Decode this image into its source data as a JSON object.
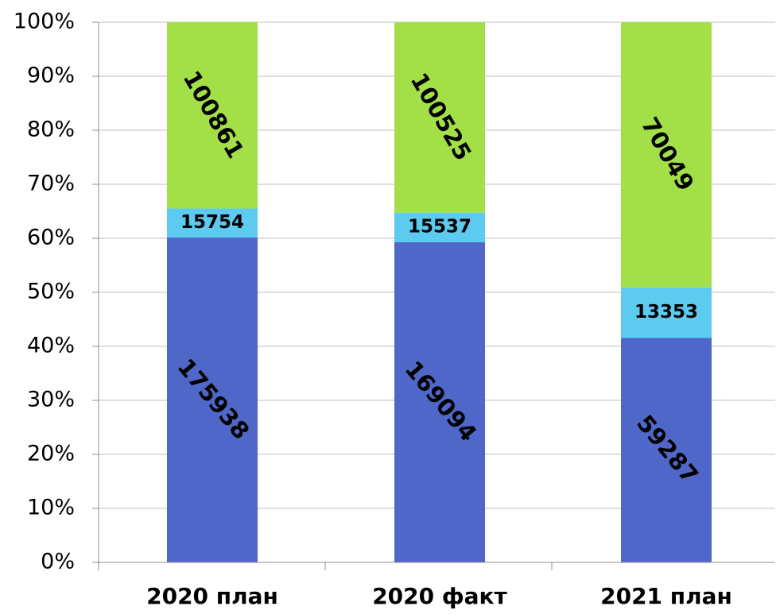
{
  "chart_data": {
    "type": "bar",
    "stacked": true,
    "normalized": true,
    "categories": [
      "2020 план",
      "2020 факт",
      "2021 план"
    ],
    "series": [
      {
        "values": [
          175938,
          169094,
          59287
        ],
        "color": "#4F67C8",
        "label_rotation_deg": 50
      },
      {
        "values": [
          15754,
          15537,
          13353
        ],
        "color": "#5DCAF0",
        "label_rotation_deg": 0
      },
      {
        "values": [
          100861,
          100525,
          70049
        ],
        "color": "#A3E048",
        "label_rotation_deg": 60
      }
    ],
    "y_tick_labels": [
      "0%",
      "10%",
      "20%",
      "30%",
      "40%",
      "50%",
      "60%",
      "70%",
      "80%",
      "90%",
      "100%"
    ],
    "ylim": [
      0,
      100
    ],
    "grid": true,
    "legend": "none"
  }
}
